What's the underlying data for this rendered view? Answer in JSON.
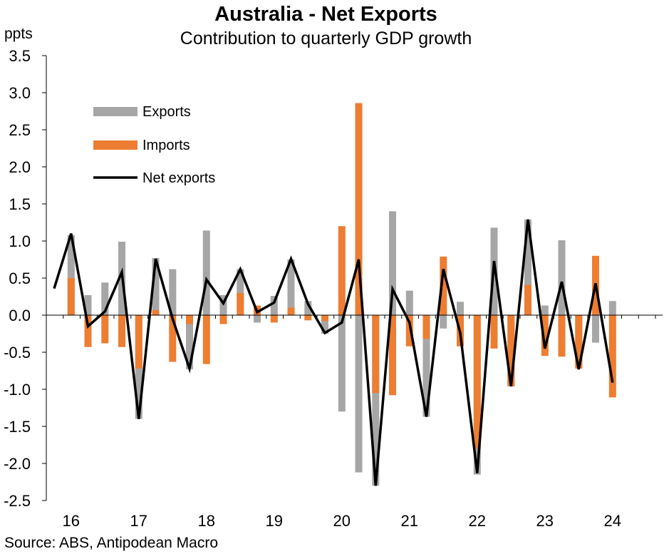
{
  "title": "Australia - Net Exports",
  "subtitle": "Contribution to quarterly GDP growth",
  "ylabel": "ppts",
  "source": "Source: ABS, Antipodean Macro",
  "colors": {
    "exports": "#a6a6a6",
    "imports": "#ed7d31",
    "net": "#000000",
    "axis": "#000000"
  },
  "chart_data": {
    "type": "bar",
    "title": "Australia - Net Exports",
    "subtitle": "Contribution to quarterly GDP growth",
    "ylabel": "ppts",
    "xlabel": "",
    "ylim": [
      -2.5,
      3.5
    ],
    "yticks": [
      "3.5",
      "3.0",
      "2.5",
      "2.0",
      "1.5",
      "1.0",
      "0.5",
      "0.0",
      "-0.5",
      "-1.0",
      "-1.5",
      "-2.0",
      "-2.5"
    ],
    "ytick_values": [
      3.5,
      3.0,
      2.5,
      2.0,
      1.5,
      1.0,
      0.5,
      0.0,
      -0.5,
      -1.0,
      -1.5,
      -2.0,
      -2.5
    ],
    "xticks": [
      "16",
      "17",
      "18",
      "19",
      "20",
      "21",
      "22",
      "23",
      "24"
    ],
    "first_year_quarter_index": 1,
    "legend": {
      "placement": "top-left",
      "entries": [
        "Exports",
        "Imports",
        "Net exports"
      ]
    },
    "series": [
      {
        "name": "Exports",
        "type": "bar",
        "values": [
          0.0,
          1.08,
          0.27,
          0.44,
          0.99,
          -1.4,
          0.77,
          0.62,
          -0.73,
          1.14,
          0.27,
          0.62,
          -0.1,
          0.26,
          0.75,
          0.19,
          -0.25,
          -1.3,
          -2.12,
          -2.3,
          1.4,
          0.33,
          -1.37,
          -0.18,
          0.18,
          -2.15,
          1.18,
          -0.96,
          1.29,
          0.13,
          1.01,
          -0.7,
          -0.37,
          0.19
        ]
      },
      {
        "name": "Imports",
        "type": "bar",
        "values": [
          0.0,
          0.5,
          -0.43,
          -0.38,
          -0.43,
          -0.72,
          0.07,
          -0.63,
          -0.12,
          -0.66,
          -0.12,
          0.3,
          0.13,
          -0.1,
          0.1,
          -0.07,
          -0.08,
          1.2,
          2.86,
          -1.05,
          -1.08,
          -0.42,
          -0.32,
          0.79,
          -0.42,
          -1.8,
          -0.45,
          -0.96,
          0.41,
          -0.55,
          -0.56,
          -0.72,
          0.8,
          -1.11
        ]
      },
      {
        "name": "Net exports",
        "type": "line",
        "values": [
          0.36,
          1.1,
          -0.15,
          0.05,
          0.58,
          -1.4,
          0.76,
          -0.05,
          -0.72,
          0.48,
          0.16,
          0.62,
          0.04,
          0.17,
          0.76,
          0.15,
          -0.24,
          -0.1,
          0.75,
          -2.3,
          0.35,
          -0.1,
          -1.37,
          0.62,
          -0.24,
          -2.13,
          0.73,
          -0.96,
          1.29,
          -0.45,
          0.45,
          -0.73,
          0.43,
          -0.91
        ]
      }
    ]
  }
}
